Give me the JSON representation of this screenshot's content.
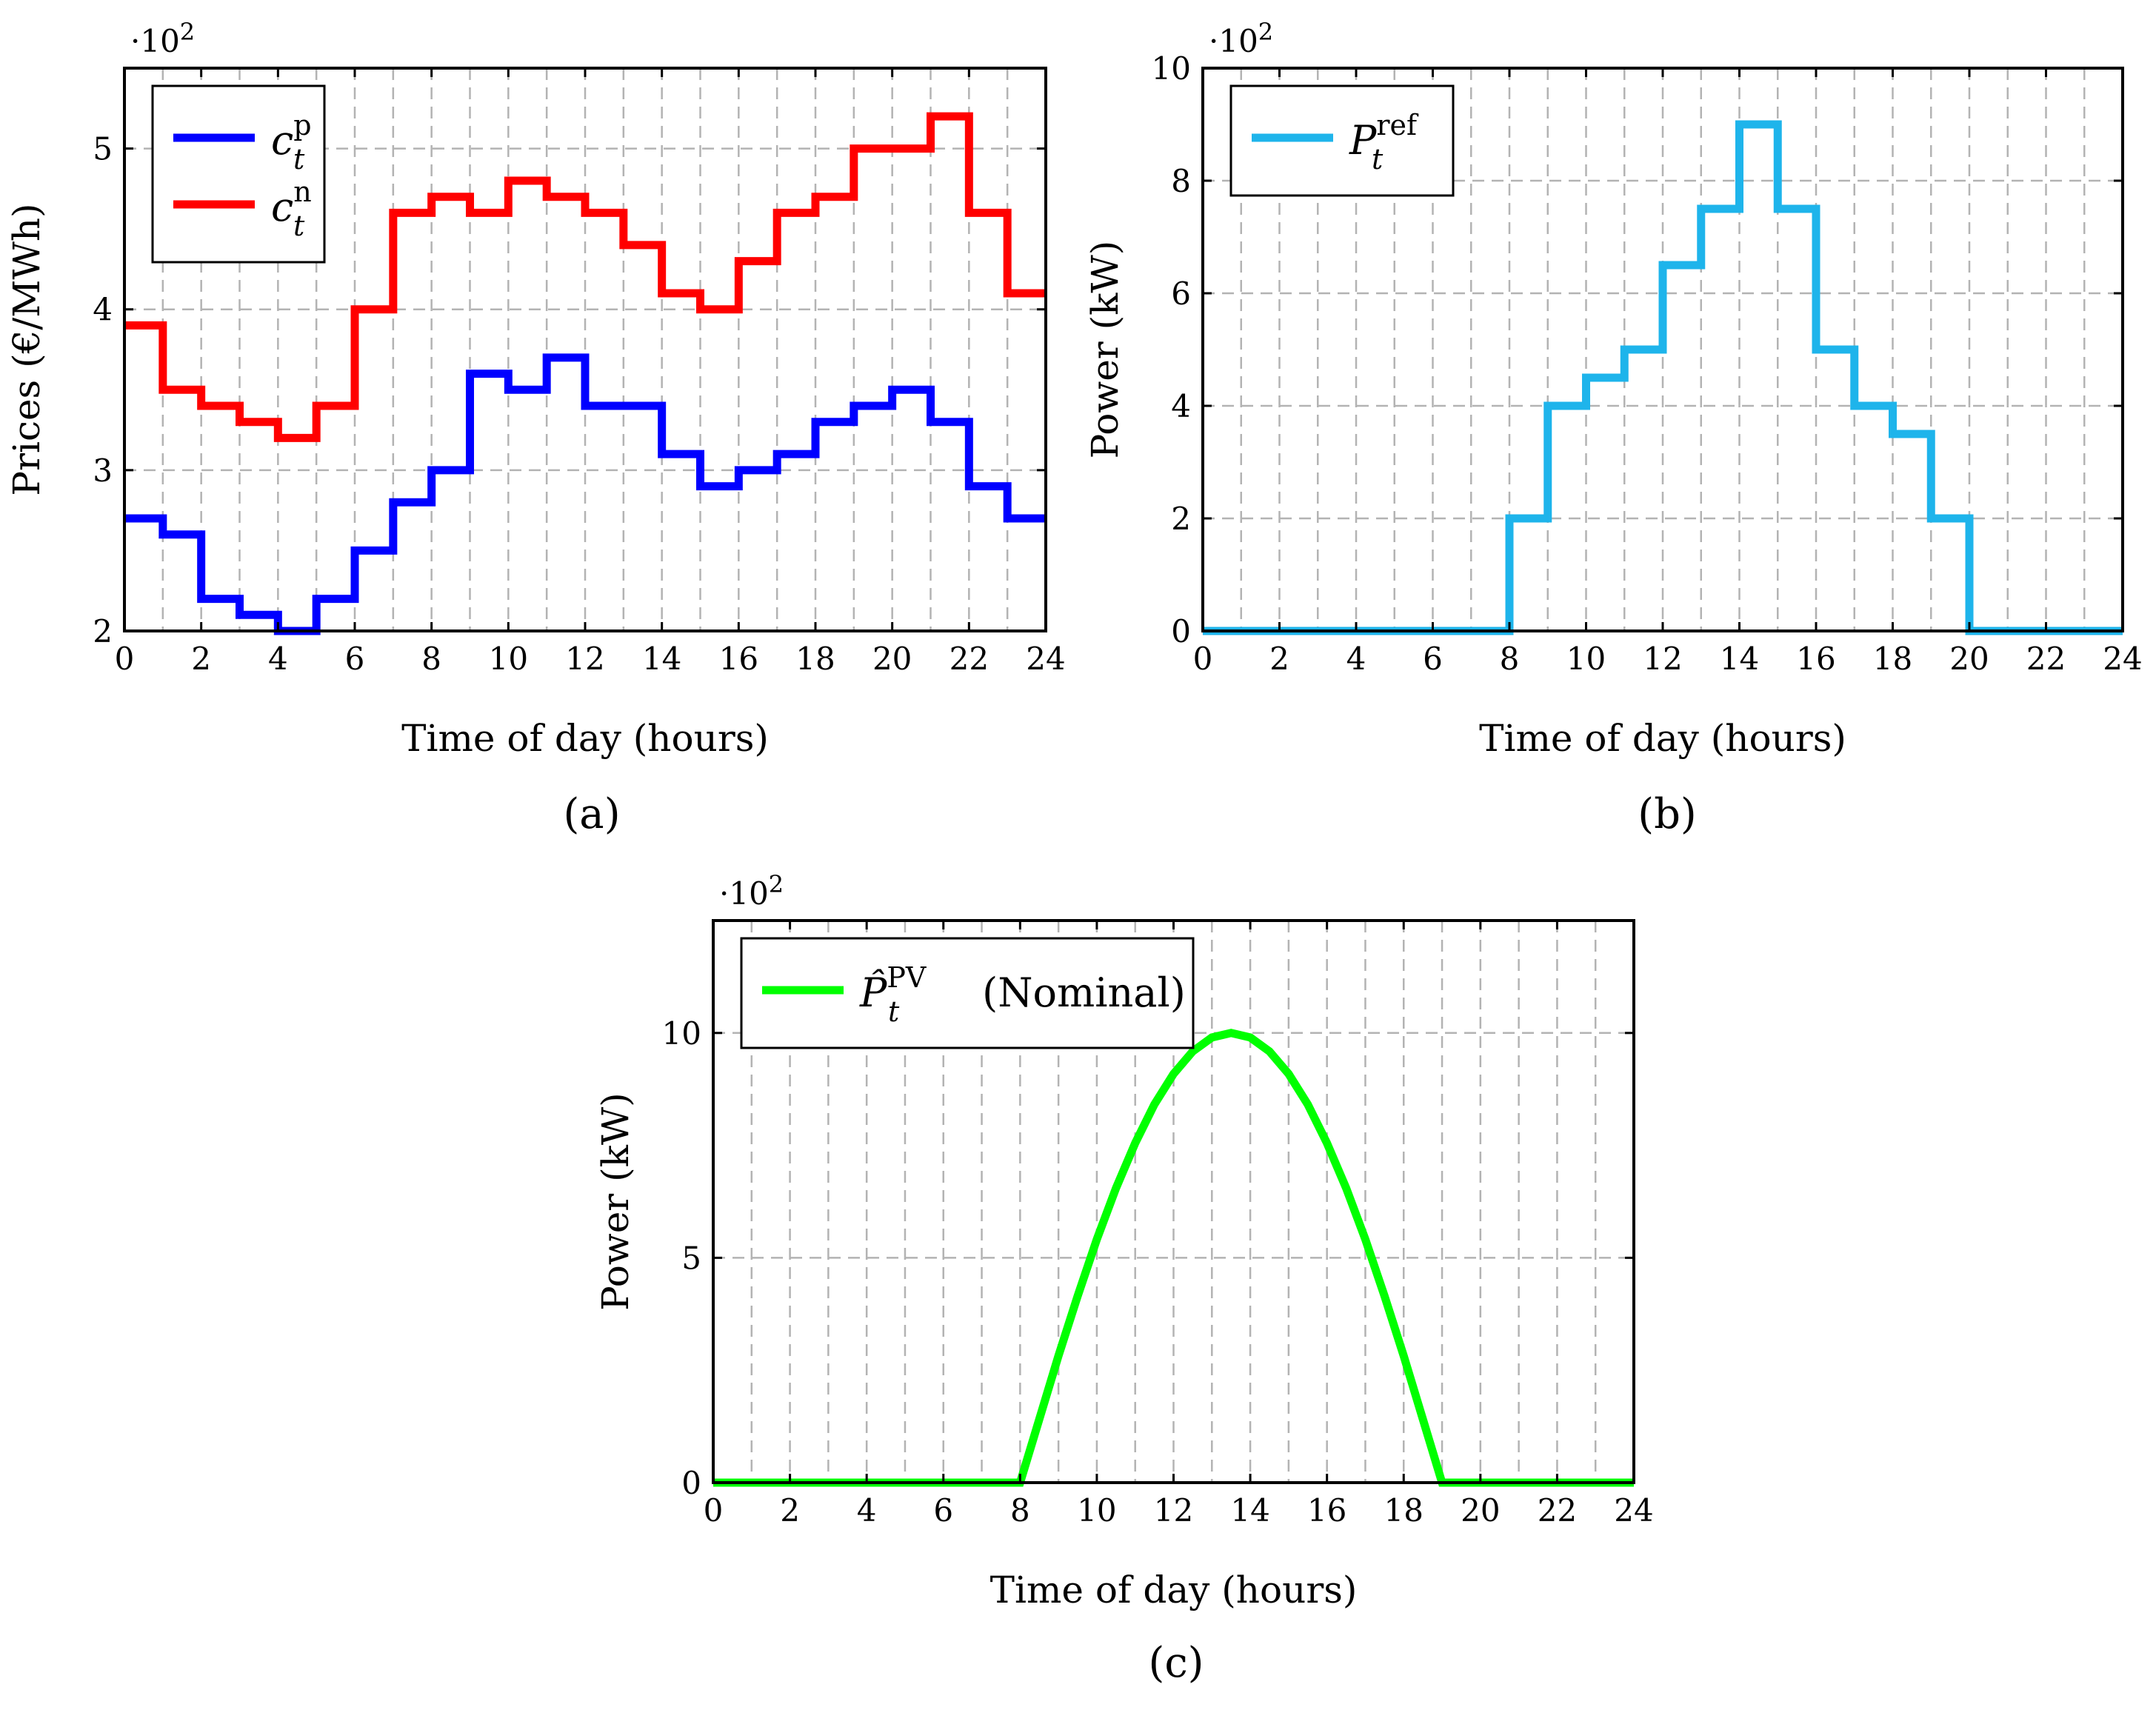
{
  "chart_data": [
    {
      "id": "a",
      "type": "line",
      "step": true,
      "panel_label": "(a)",
      "xlabel": "Time of day (hours)",
      "ylabel": "Prices (€/MWh)",
      "y_multiplier": "·10",
      "y_multiplier_exp": "2",
      "xlim": [
        0,
        24
      ],
      "ylim": [
        2,
        5.5
      ],
      "xticks": [
        0,
        2,
        4,
        6,
        8,
        10,
        12,
        14,
        16,
        18,
        20,
        22,
        24
      ],
      "yticks": [
        2,
        3,
        4,
        5
      ],
      "legend_position": "top-left",
      "x": [
        0,
        1,
        2,
        3,
        4,
        5,
        6,
        7,
        8,
        9,
        10,
        11,
        12,
        13,
        14,
        15,
        16,
        17,
        18,
        19,
        20,
        21,
        22,
        23,
        24
      ],
      "series": [
        {
          "name": "c_t^p",
          "legend_base": "c",
          "legend_sub": "t",
          "legend_sup": "p",
          "color": "#0000ff",
          "values": [
            2.7,
            2.6,
            2.2,
            2.1,
            2.0,
            2.2,
            2.5,
            2.8,
            3.0,
            3.6,
            3.5,
            3.7,
            3.4,
            3.4,
            3.1,
            2.9,
            3.0,
            3.1,
            3.3,
            3.4,
            3.5,
            3.3,
            2.9,
            2.7,
            2.7
          ]
        },
        {
          "name": "c_t^n",
          "legend_base": "c",
          "legend_sub": "t",
          "legend_sup": "n",
          "color": "#ff0000",
          "values": [
            3.9,
            3.5,
            3.4,
            3.3,
            3.2,
            3.4,
            4.0,
            4.6,
            4.7,
            4.6,
            4.8,
            4.7,
            4.6,
            4.4,
            4.1,
            4.0,
            4.3,
            4.6,
            4.7,
            5.0,
            5.0,
            5.2,
            4.6,
            4.1,
            4.1
          ]
        }
      ]
    },
    {
      "id": "b",
      "type": "line",
      "step": true,
      "panel_label": "(b)",
      "xlabel": "Time of day (hours)",
      "ylabel": "Power (kW)",
      "y_multiplier": "·10",
      "y_multiplier_exp": "2",
      "xlim": [
        0,
        24
      ],
      "ylim": [
        0,
        10
      ],
      "xticks": [
        0,
        2,
        4,
        6,
        8,
        10,
        12,
        14,
        16,
        18,
        20,
        22,
        24
      ],
      "yticks": [
        0,
        2,
        4,
        6,
        8,
        10
      ],
      "legend_position": "top-left",
      "x": [
        0,
        1,
        2,
        3,
        4,
        5,
        6,
        7,
        8,
        9,
        10,
        11,
        12,
        13,
        14,
        15,
        16,
        17,
        18,
        19,
        20,
        21,
        22,
        23,
        24
      ],
      "series": [
        {
          "name": "P_t^ref",
          "legend_base": "P",
          "legend_sub": "t",
          "legend_sup": "ref",
          "color": "#1eb4eb",
          "values": [
            0,
            0,
            0,
            0,
            0,
            0,
            0,
            0,
            2,
            4,
            4.5,
            5,
            6.5,
            7.5,
            9,
            7.5,
            5,
            4,
            3.5,
            2,
            0,
            0,
            0,
            0,
            0
          ]
        }
      ]
    },
    {
      "id": "c",
      "type": "line",
      "step": false,
      "panel_label": "(c)",
      "xlabel": "Time of day (hours)",
      "ylabel": "Power (kW)",
      "y_multiplier": "·10",
      "y_multiplier_exp": "2",
      "xlim": [
        0,
        24
      ],
      "ylim": [
        0,
        12.5
      ],
      "xticks": [
        0,
        2,
        4,
        6,
        8,
        10,
        12,
        14,
        16,
        18,
        20,
        22,
        24
      ],
      "yticks": [
        0,
        5,
        10
      ],
      "legend_position": "top-left",
      "series": [
        {
          "name": "P̂_t^PV (Nominal)",
          "legend_base": "P̂",
          "legend_sub": "t",
          "legend_sup": "PV",
          "legend_suffix": " (Nominal)",
          "color": "#00ff00",
          "x": [
            0,
            8,
            8.5,
            9,
            9.5,
            10,
            10.5,
            11,
            11.5,
            12,
            12.5,
            13,
            13.5,
            14,
            14.5,
            15,
            15.5,
            16,
            16.5,
            17,
            17.5,
            18,
            18.5,
            19,
            24
          ],
          "values": [
            0,
            0,
            1.41,
            2.82,
            4.15,
            5.41,
            6.55,
            7.55,
            8.41,
            9.09,
            9.59,
            9.9,
            10.0,
            9.9,
            9.59,
            9.09,
            8.41,
            7.55,
            6.55,
            5.41,
            4.15,
            2.82,
            1.41,
            0,
            0
          ]
        }
      ]
    }
  ]
}
